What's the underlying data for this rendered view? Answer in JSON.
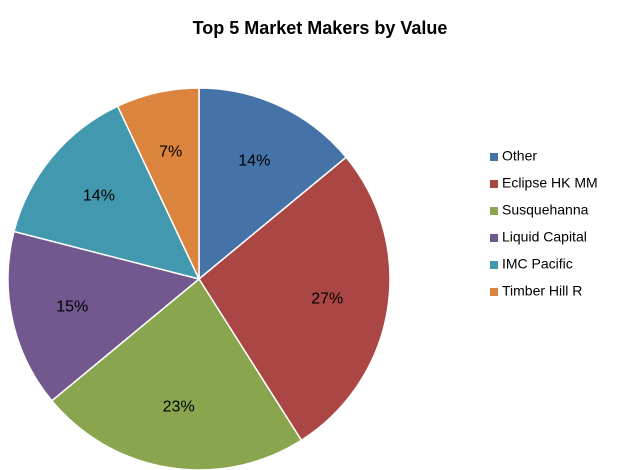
{
  "chart_data": {
    "type": "pie",
    "title": "Top 5 Market Makers by Value",
    "categories": [
      "Other",
      "Eclipse HK MM",
      "Susquehanna",
      "Liquid Capital",
      "IMC Pacific",
      "Timber Hill R"
    ],
    "values": [
      14,
      27,
      23,
      15,
      14,
      7
    ],
    "value_labels": [
      "14%",
      "27%",
      "23%",
      "15%",
      "14%",
      "7%"
    ],
    "colors": [
      "#4572a7",
      "#aa4643",
      "#89a54e",
      "#71588f",
      "#4198af",
      "#db843d"
    ],
    "legend": "right"
  }
}
